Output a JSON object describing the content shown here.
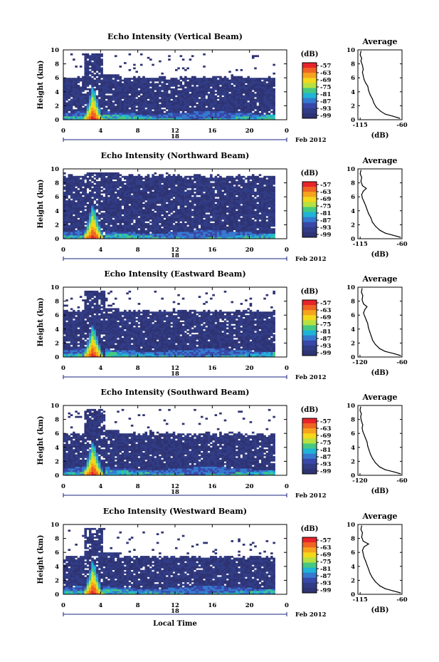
{
  "colorbar": {
    "unit": "(dB)",
    "ticks": [
      "-57",
      "-63",
      "-69",
      "-75",
      "-81",
      "-87",
      "-93",
      "-99"
    ],
    "colors": [
      "#e8232a",
      "#ef6422",
      "#f6a31d",
      "#f4d81b",
      "#b6e140",
      "#45c881",
      "#1fb4d6",
      "#3579cf",
      "#3848a8",
      "#313c86",
      "#2e3373"
    ]
  },
  "x_axis_label": "Local Time",
  "date_label": "Feb 2012",
  "avg_title": "Average",
  "avg_xlabel": "(dB)",
  "height_label": "Height (km)",
  "chart_data": [
    {
      "type": "heatmap",
      "title": "Echo Intensity (Vertical Beam)",
      "ylabel": "Height (km)",
      "xlabel": "",
      "x_ticks": [
        "0",
        "4",
        "8",
        "12",
        "16",
        "20",
        "0"
      ],
      "y_ticks": [
        "0",
        "2",
        "4",
        "6",
        "8",
        "10"
      ],
      "xlim": [
        0,
        24
      ],
      "ylim": [
        0,
        10
      ],
      "day_label": "18",
      "colorbar_range": [
        -99,
        -57
      ],
      "echo_top_km": 6.3,
      "convection": {
        "start_h": 2.3,
        "end_h": 4.3,
        "peak_h": 3.2,
        "peak_top_km": 5.0
      },
      "average_profile": {
        "title": "Average",
        "xlabel": "(dB)",
        "x_ticks": [
          "-115",
          "-60"
        ],
        "y_ticks": [
          "0",
          "2",
          "4",
          "6",
          "8",
          "10"
        ],
        "xlim": [
          -118,
          -60
        ],
        "ylim": [
          0,
          10
        ],
        "values": [
          [
            -63,
            0.2
          ],
          [
            -72,
            0.5
          ],
          [
            -82,
            0.8
          ],
          [
            -88,
            1.2
          ],
          [
            -94,
            1.8
          ],
          [
            -97,
            2.4
          ],
          [
            -99,
            3.0
          ],
          [
            -102,
            3.6
          ],
          [
            -104,
            4.2
          ],
          [
            -105,
            4.8
          ],
          [
            -108,
            5.3
          ],
          [
            -110,
            5.8
          ],
          [
            -111,
            6.3
          ],
          [
            -112,
            6.8
          ],
          [
            -111,
            7.2
          ],
          [
            -112,
            7.8
          ],
          [
            -114,
            8.4
          ],
          [
            -113,
            8.8
          ],
          [
            -115,
            9.3
          ],
          [
            -114,
            9.8
          ]
        ]
      }
    },
    {
      "type": "heatmap",
      "title": "Echo Intensity (Northward Beam)",
      "ylabel": "Height (km)",
      "xlabel": "",
      "x_ticks": [
        "0",
        "4",
        "8",
        "12",
        "16",
        "20",
        "0"
      ],
      "y_ticks": [
        "0",
        "2",
        "4",
        "6",
        "8",
        "10"
      ],
      "xlim": [
        0,
        24
      ],
      "ylim": [
        0,
        10
      ],
      "day_label": "18",
      "colorbar_range": [
        -99,
        -57
      ],
      "echo_top_km": 9.2,
      "convection": {
        "start_h": 2.3,
        "end_h": 4.5,
        "peak_h": 3.2,
        "peak_top_km": 5.0
      },
      "average_profile": {
        "title": "Average",
        "xlabel": "(dB)",
        "x_ticks": [
          "-115",
          "-60"
        ],
        "y_ticks": [
          "0",
          "2",
          "4",
          "6",
          "8",
          "10"
        ],
        "xlim": [
          -118,
          -60
        ],
        "ylim": [
          0,
          10
        ],
        "values": [
          [
            -62,
            0.2
          ],
          [
            -72,
            0.5
          ],
          [
            -82,
            0.8
          ],
          [
            -89,
            1.2
          ],
          [
            -95,
            1.8
          ],
          [
            -99,
            2.4
          ],
          [
            -101,
            3.0
          ],
          [
            -104,
            3.6
          ],
          [
            -106,
            4.2
          ],
          [
            -108,
            4.8
          ],
          [
            -110,
            5.3
          ],
          [
            -112,
            5.8
          ],
          [
            -113,
            6.3
          ],
          [
            -111,
            6.8
          ],
          [
            -107,
            7.2
          ],
          [
            -112,
            7.6
          ],
          [
            -114,
            8.2
          ],
          [
            -113,
            8.8
          ],
          [
            -115,
            9.3
          ],
          [
            -114,
            9.8
          ]
        ]
      }
    },
    {
      "type": "heatmap",
      "title": "Echo Intensity (Eastward Beam)",
      "ylabel": "Height (km)",
      "xlabel": "",
      "x_ticks": [
        "0",
        "4",
        "8",
        "12",
        "16",
        "20",
        "0"
      ],
      "y_ticks": [
        "0",
        "2",
        "4",
        "6",
        "8",
        "10"
      ],
      "xlim": [
        0,
        24
      ],
      "ylim": [
        0,
        10
      ],
      "day_label": "18",
      "colorbar_range": [
        -99,
        -57
      ],
      "echo_top_km": 6.8,
      "convection": {
        "start_h": 2.3,
        "end_h": 4.4,
        "peak_h": 3.2,
        "peak_top_km": 4.8
      },
      "average_profile": {
        "title": "Average",
        "xlabel": "(dB)",
        "x_ticks": [
          "-120",
          "-60"
        ],
        "y_ticks": [
          "0",
          "2",
          "4",
          "6",
          "8",
          "10"
        ],
        "xlim": [
          -123,
          -60
        ],
        "ylim": [
          0,
          10
        ],
        "values": [
          [
            -62,
            0.2
          ],
          [
            -72,
            0.5
          ],
          [
            -84,
            0.8
          ],
          [
            -92,
            1.2
          ],
          [
            -98,
            1.8
          ],
          [
            -102,
            2.4
          ],
          [
            -104,
            3.0
          ],
          [
            -106,
            3.6
          ],
          [
            -108,
            4.2
          ],
          [
            -109,
            4.8
          ],
          [
            -111,
            5.3
          ],
          [
            -113,
            5.8
          ],
          [
            -115,
            6.3
          ],
          [
            -113,
            6.8
          ],
          [
            -110,
            7.2
          ],
          [
            -115,
            7.6
          ],
          [
            -117,
            8.2
          ],
          [
            -116,
            8.8
          ],
          [
            -118,
            9.3
          ],
          [
            -117,
            9.8
          ]
        ]
      }
    },
    {
      "type": "heatmap",
      "title": "Echo Intensity (Southward Beam)",
      "ylabel": "Height (km)",
      "xlabel": "",
      "x_ticks": [
        "0",
        "4",
        "8",
        "12",
        "16",
        "20",
        "0"
      ],
      "y_ticks": [
        "0",
        "2",
        "4",
        "6",
        "8",
        "10"
      ],
      "xlim": [
        0,
        24
      ],
      "ylim": [
        0,
        10
      ],
      "day_label": "18",
      "colorbar_range": [
        -99,
        -57
      ],
      "echo_top_km": 6.2,
      "convection": {
        "start_h": 2.3,
        "end_h": 4.5,
        "peak_h": 3.2,
        "peak_top_km": 5.0
      },
      "average_profile": {
        "title": "Average",
        "xlabel": "(dB)",
        "x_ticks": [
          "-120",
          "-60"
        ],
        "y_ticks": [
          "0",
          "2",
          "4",
          "6",
          "8",
          "10"
        ],
        "xlim": [
          -123,
          -60
        ],
        "ylim": [
          0,
          10
        ],
        "values": [
          [
            -62,
            0.2
          ],
          [
            -72,
            0.5
          ],
          [
            -84,
            0.8
          ],
          [
            -92,
            1.2
          ],
          [
            -98,
            1.8
          ],
          [
            -102,
            2.4
          ],
          [
            -105,
            3.0
          ],
          [
            -107,
            3.6
          ],
          [
            -109,
            4.2
          ],
          [
            -110,
            4.8
          ],
          [
            -112,
            5.3
          ],
          [
            -114,
            5.8
          ],
          [
            -116,
            6.3
          ],
          [
            -117,
            6.8
          ],
          [
            -116,
            7.2
          ],
          [
            -118,
            7.8
          ],
          [
            -119,
            8.4
          ],
          [
            -118,
            8.8
          ],
          [
            -120,
            9.3
          ],
          [
            -119,
            9.8
          ]
        ]
      }
    },
    {
      "type": "heatmap",
      "title": "Echo Intensity (Westward Beam)",
      "ylabel": "Height (km)",
      "xlabel": "Local Time",
      "x_ticks": [
        "0",
        "4",
        "8",
        "12",
        "16",
        "20",
        "0"
      ],
      "y_ticks": [
        "0",
        "2",
        "4",
        "6",
        "8",
        "10"
      ],
      "xlim": [
        0,
        24
      ],
      "ylim": [
        0,
        10
      ],
      "day_label": "18",
      "colorbar_range": [
        -99,
        -57
      ],
      "echo_top_km": 5.6,
      "convection": {
        "start_h": 2.3,
        "end_h": 4.3,
        "peak_h": 3.2,
        "peak_top_km": 5.0
      },
      "average_profile": {
        "title": "Average",
        "xlabel": "(dB)",
        "x_ticks": [
          "-115",
          "-60"
        ],
        "y_ticks": [
          "0",
          "2",
          "4",
          "6",
          "8",
          "10"
        ],
        "xlim": [
          -118,
          -60
        ],
        "ylim": [
          0,
          10
        ],
        "values": [
          [
            -62,
            0.2
          ],
          [
            -72,
            0.5
          ],
          [
            -82,
            0.8
          ],
          [
            -89,
            1.2
          ],
          [
            -95,
            1.8
          ],
          [
            -99,
            2.4
          ],
          [
            -102,
            3.0
          ],
          [
            -104,
            3.6
          ],
          [
            -106,
            4.2
          ],
          [
            -108,
            4.8
          ],
          [
            -110,
            5.3
          ],
          [
            -111,
            5.8
          ],
          [
            -112,
            6.3
          ],
          [
            -110,
            6.8
          ],
          [
            -104,
            7.2
          ],
          [
            -111,
            7.6
          ],
          [
            -113,
            8.2
          ],
          [
            -112,
            8.8
          ],
          [
            -114,
            9.3
          ],
          [
            -113,
            9.8
          ]
        ]
      }
    }
  ]
}
